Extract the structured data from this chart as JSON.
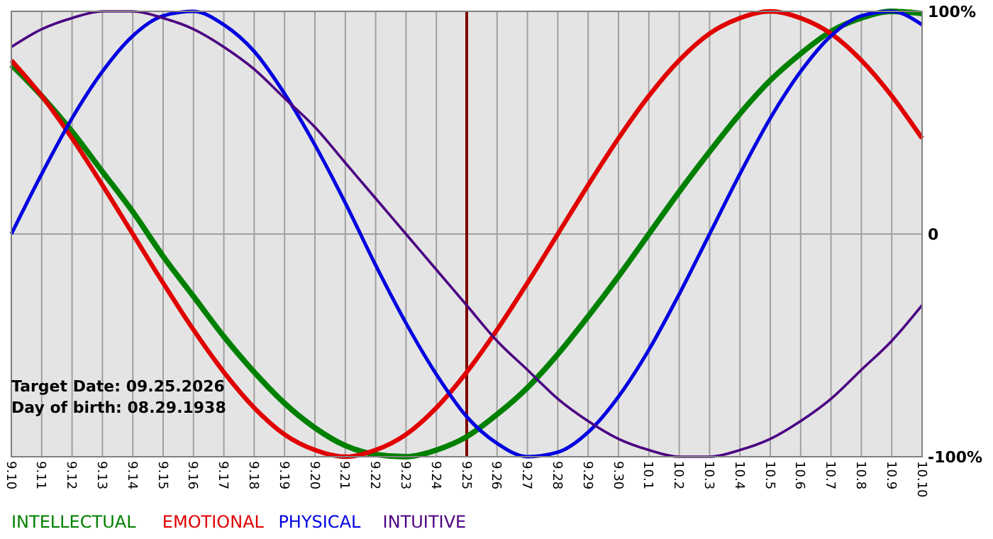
{
  "chart_data": {
    "type": "line",
    "categories": [
      "9.10",
      "9.11",
      "9.12",
      "9.13",
      "9.14",
      "9.15",
      "9.16",
      "9.17",
      "9.18",
      "9.19",
      "9.20",
      "9.21",
      "9.22",
      "9.23",
      "9.24",
      "9.25",
      "9.26",
      "9.27",
      "9.28",
      "9.29",
      "9.30",
      "10.1",
      "10.2",
      "10.3",
      "10.4",
      "10.5",
      "10.6",
      "10.7",
      "10.8",
      "10.9",
      "10.10"
    ],
    "series": [
      {
        "name": "INTELLECTUAL",
        "color": "#008000",
        "values": [
          76,
          62,
          46,
          28,
          10,
          -10,
          -28,
          -46,
          -62,
          -76,
          -87,
          -95,
          -99,
          -100,
          -97,
          -91,
          -81,
          -69,
          -54,
          -37,
          -19,
          0,
          19,
          37,
          54,
          69,
          81,
          91,
          97,
          100,
          99
        ]
      },
      {
        "name": "EMOTIONAL",
        "color": "#e00000",
        "values": [
          78,
          62,
          43,
          22,
          0,
          -22,
          -43,
          -62,
          -78,
          -90,
          -97,
          -100,
          -97,
          -90,
          -78,
          -62,
          -43,
          -22,
          0,
          22,
          43,
          62,
          78,
          90,
          97,
          100,
          97,
          90,
          78,
          62,
          43
        ]
      },
      {
        "name": "PHYSICAL",
        "color": "#0000e0",
        "values": [
          0,
          27,
          52,
          73,
          89,
          98,
          100,
          94,
          82,
          63,
          40,
          14,
          -14,
          -40,
          -63,
          -82,
          -94,
          -100,
          -98,
          -89,
          -73,
          -52,
          -27,
          0,
          27,
          52,
          73,
          89,
          98,
          100,
          94
        ]
      },
      {
        "name": "INTUITIVE",
        "color": "#4b0082",
        "values": [
          84,
          92,
          97,
          100,
          100,
          97,
          92,
          84,
          74,
          61,
          48,
          32,
          16,
          0,
          -16,
          -32,
          -48,
          -61,
          -74,
          -84,
          -92,
          -97,
          -100,
          -100,
          -97,
          -92,
          -84,
          -74,
          -61,
          -48,
          -32
        ]
      }
    ],
    "ylim": [
      -100,
      100
    ],
    "yticks": [
      {
        "value": 100,
        "label": "100%"
      },
      0,
      {
        "value": -100,
        "label": "-100%"
      }
    ],
    "grid": true,
    "legend": "bottom",
    "ref_lines": [
      {
        "axis": "x",
        "value": "9.25",
        "color": "#800000"
      }
    ],
    "annotations": [
      "Target Date: 09.25.2026",
      "Day of birth: 08.29.1938"
    ]
  }
}
